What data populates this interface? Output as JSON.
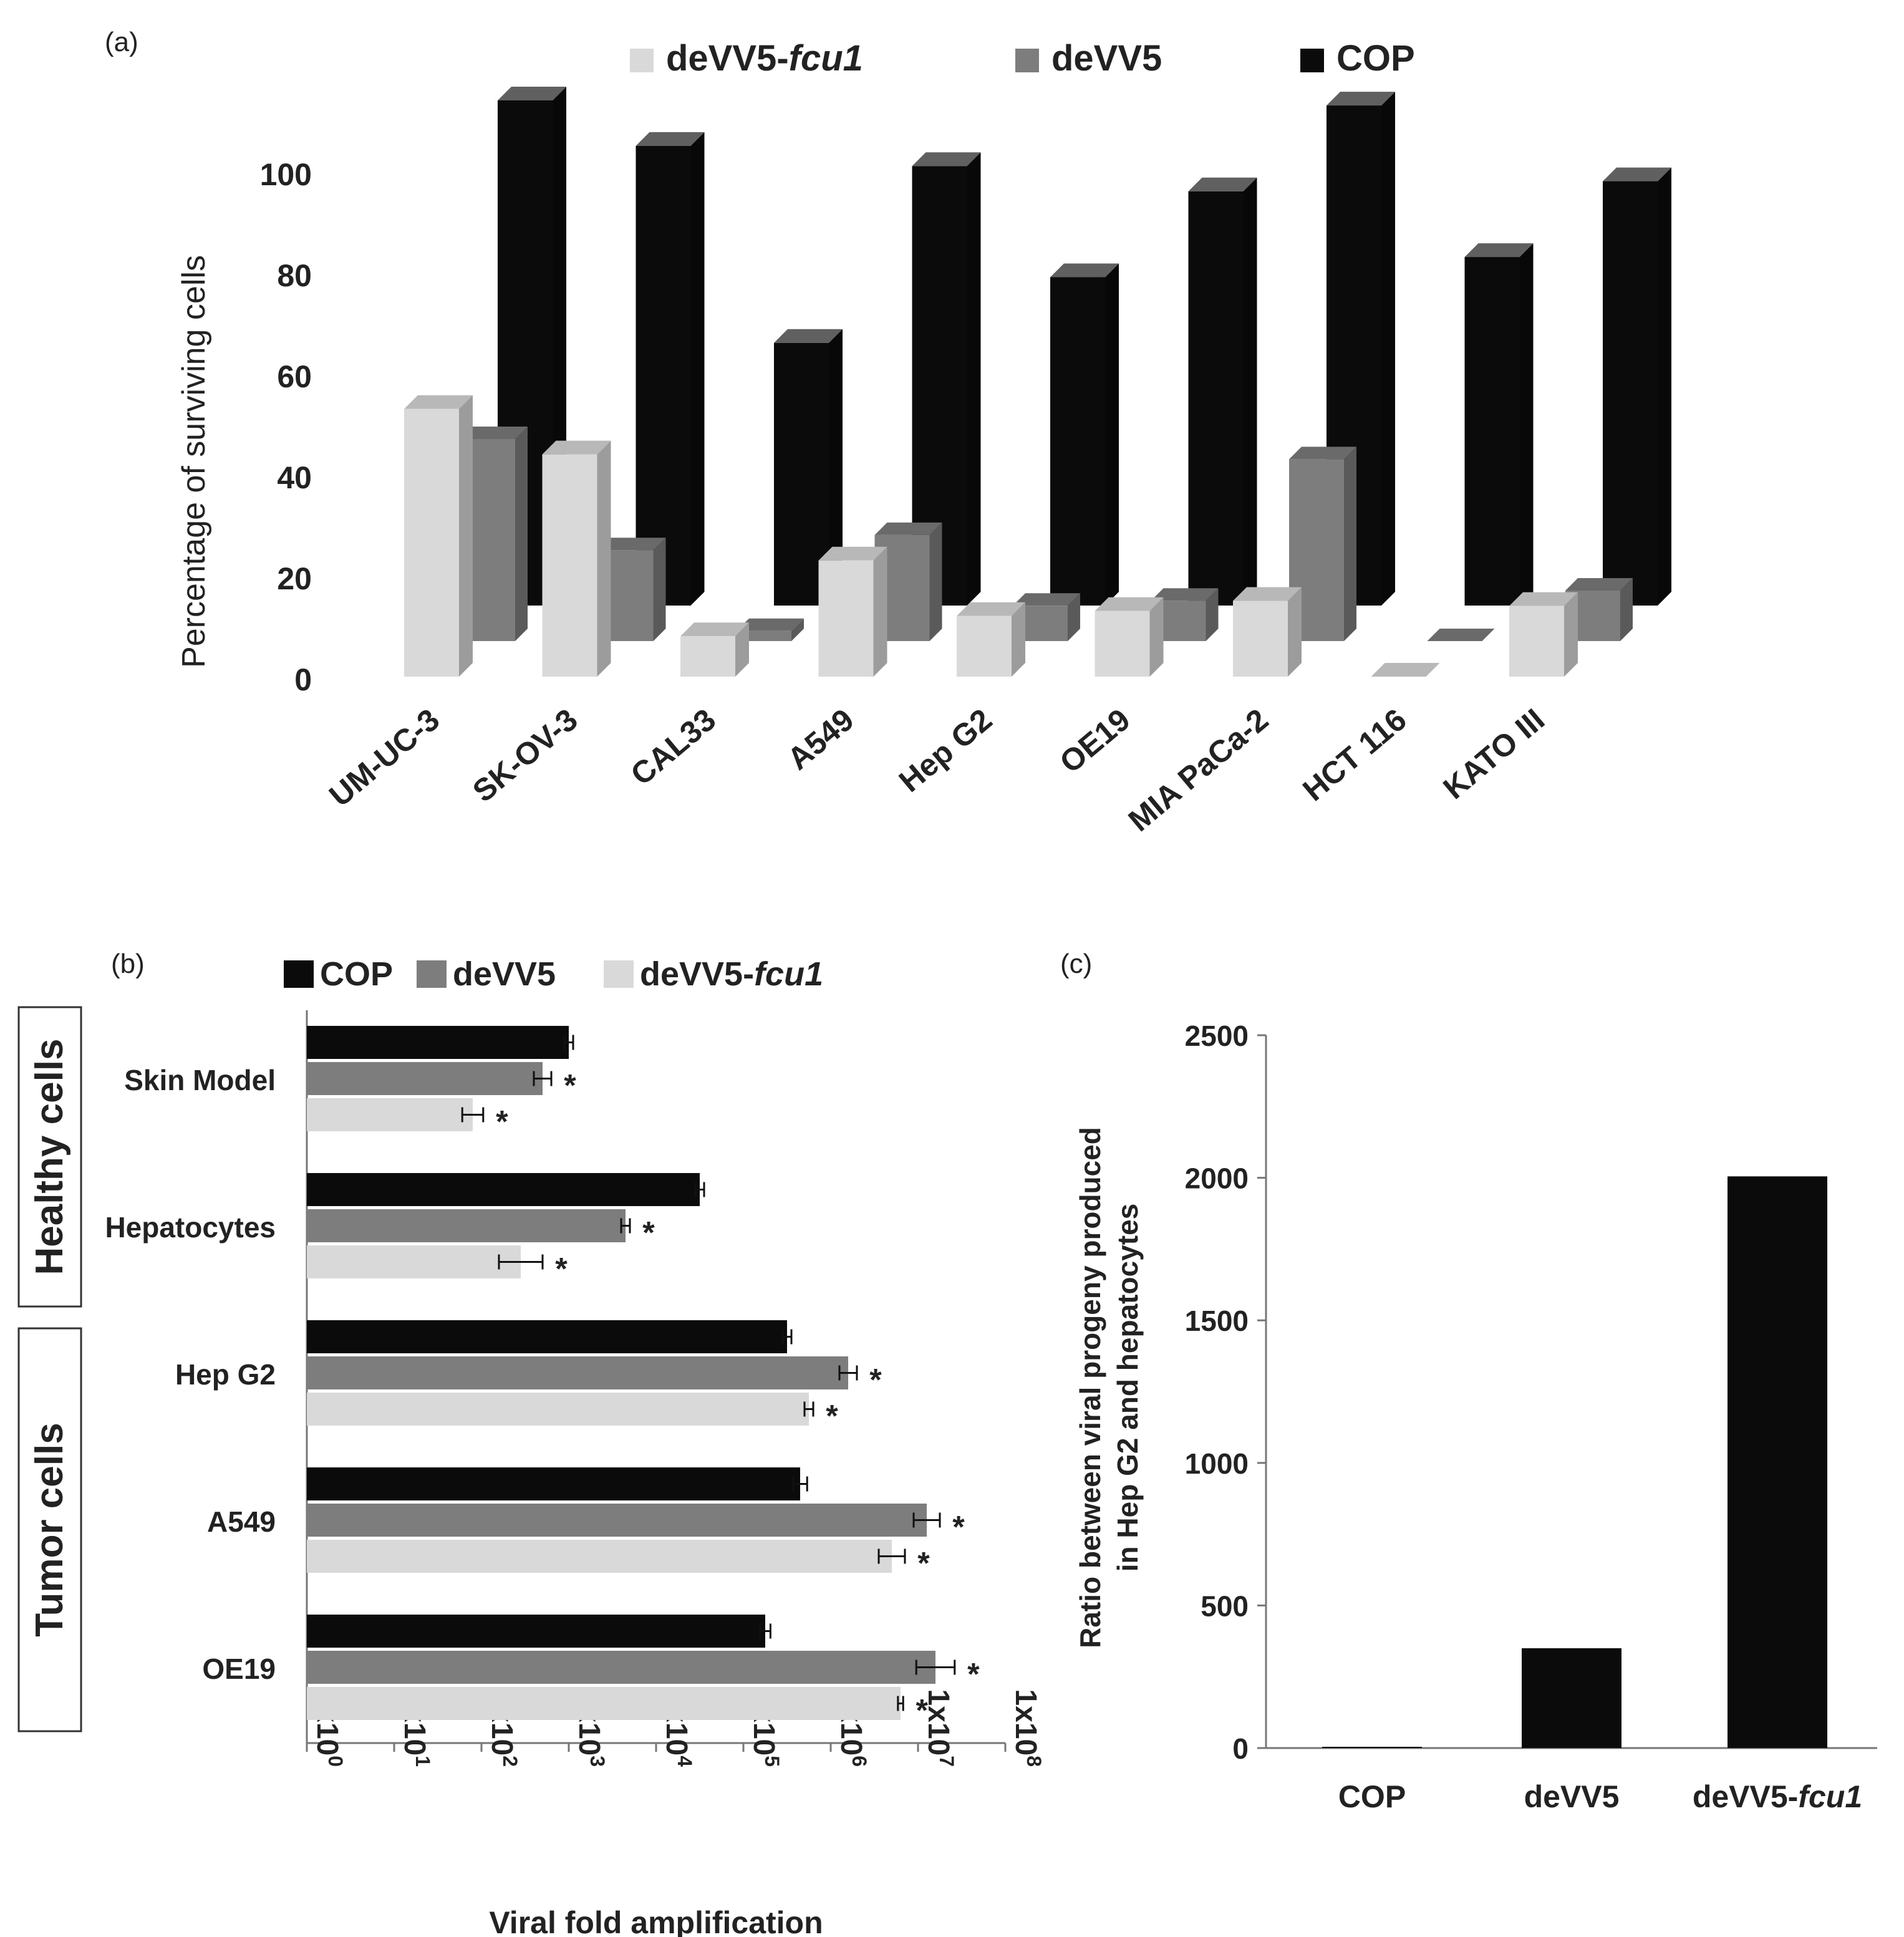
{
  "panel_labels": {
    "a": "(a)",
    "b": "(b)",
    "c": "(c)"
  },
  "colors": {
    "cop": "#0b0b0b",
    "devv5": "#7d7d7d",
    "devv5_fcu1": "#d9d9d9",
    "axis": "#777777"
  },
  "chart_data": [
    {
      "id": "a",
      "type": "bar",
      "title": "",
      "ylabel": "Percentage of surviving cells",
      "xlabel": "",
      "ylim": [
        0,
        100
      ],
      "yticks": [
        0,
        20,
        40,
        60,
        80,
        100
      ],
      "legend": [
        {
          "main": "deVV5-",
          "italic": "fcu1"
        },
        {
          "main": "deVV5",
          "italic": ""
        },
        {
          "main": "COP",
          "italic": ""
        }
      ],
      "categories": [
        "UM-UC-3",
        "SK-OV-3",
        "CAL33",
        "A549",
        "Hep G2",
        "OE19",
        "MIA PaCa-2",
        "HCT 116",
        "KATO III"
      ],
      "series": [
        {
          "name": "deVV5-fcu1",
          "values": [
            53,
            44,
            8,
            23,
            12,
            13,
            15,
            0,
            14
          ]
        },
        {
          "name": "deVV5",
          "values": [
            40,
            18,
            2,
            21,
            7,
            8,
            36,
            0,
            10
          ]
        },
        {
          "name": "COP",
          "values": [
            100,
            91,
            52,
            87,
            65,
            82,
            99,
            69,
            84
          ]
        }
      ]
    },
    {
      "id": "b",
      "type": "bar",
      "orientation": "horizontal",
      "scale": "log",
      "xlabel": "Viral fold amplification",
      "xlim_log10": [
        0,
        8
      ],
      "xtick_base": "1x10",
      "xtick_exponents": [
        "0",
        "1",
        "2",
        "3",
        "4",
        "5",
        "6",
        "7",
        "8"
      ],
      "legend": [
        {
          "main": "COP",
          "italic": ""
        },
        {
          "main": "deVV5",
          "italic": ""
        },
        {
          "main": "deVV5-",
          "italic": "fcu1"
        }
      ],
      "groups": [
        {
          "label": "Healthy cells",
          "categories": [
            "Skin Model",
            "Hepatocytes"
          ]
        },
        {
          "label": "Tumor cells",
          "categories": [
            "Hep G2",
            "A549",
            "OE19"
          ]
        }
      ],
      "categories": [
        "Skin Model",
        "Hepatocytes",
        "Hep G2",
        "A549",
        "OE19"
      ],
      "significance_marker": "*",
      "series": [
        {
          "name": "COP",
          "log10_values": [
            3.0,
            4.5,
            5.5,
            5.65,
            5.25
          ],
          "log10_error": [
            0.05,
            0.05,
            0.05,
            0.08,
            0.06
          ],
          "significant": [
            false,
            false,
            false,
            false,
            false
          ]
        },
        {
          "name": "deVV5",
          "log10_values": [
            2.7,
            3.65,
            6.2,
            7.1,
            7.2
          ],
          "log10_error": [
            0.1,
            0.05,
            0.1,
            0.15,
            0.22
          ],
          "significant": [
            true,
            true,
            true,
            true,
            true
          ]
        },
        {
          "name": "deVV5-fcu1",
          "log10_values": [
            1.9,
            2.45,
            5.75,
            6.7,
            6.8
          ],
          "log10_error": [
            0.12,
            0.25,
            0.05,
            0.15,
            0.03
          ],
          "significant": [
            true,
            true,
            true,
            true,
            true
          ]
        }
      ]
    },
    {
      "id": "c",
      "type": "bar",
      "ylabel_line1": "Ratio between viral progeny produced",
      "ylabel_line2": "in Hep G2 and hepatocytes",
      "ylim": [
        0,
        2500
      ],
      "yticks": [
        0,
        500,
        1000,
        1500,
        2000,
        2500
      ],
      "categories": [
        {
          "main": "COP",
          "italic": ""
        },
        {
          "main": "deVV5",
          "italic": ""
        },
        {
          "main": "deVV5-",
          "italic": "fcu1"
        }
      ],
      "values": [
        3,
        350,
        2005
      ]
    }
  ]
}
